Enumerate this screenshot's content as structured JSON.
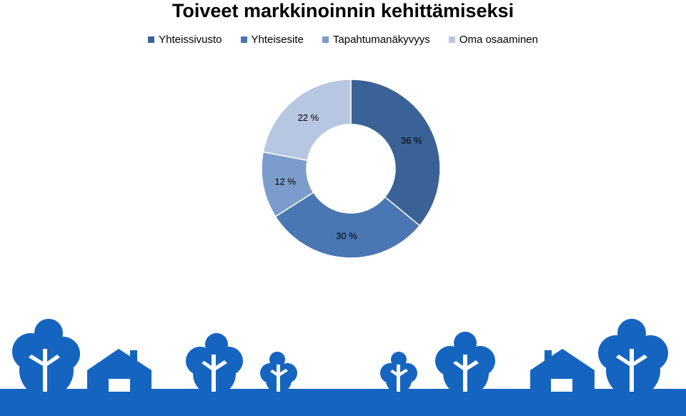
{
  "chart_data": {
    "type": "pie",
    "donut": true,
    "title": "Toiveet markkinoinnin kehittämiseksi",
    "legend_position": "top",
    "categories": [
      "Yhteissivusto",
      "Yhteisesite",
      "Tapahtumanäkyvyys",
      "Oma osaaminen"
    ],
    "values": [
      36,
      30,
      12,
      22
    ],
    "data_labels": [
      "36 %",
      "30 %",
      "12 %",
      "22 %"
    ],
    "colors": [
      "#3b6296",
      "#4a77b4",
      "#7c9dcb",
      "#b7c7e1"
    ]
  },
  "colors": {
    "scenery_blue": "#1565c0"
  }
}
